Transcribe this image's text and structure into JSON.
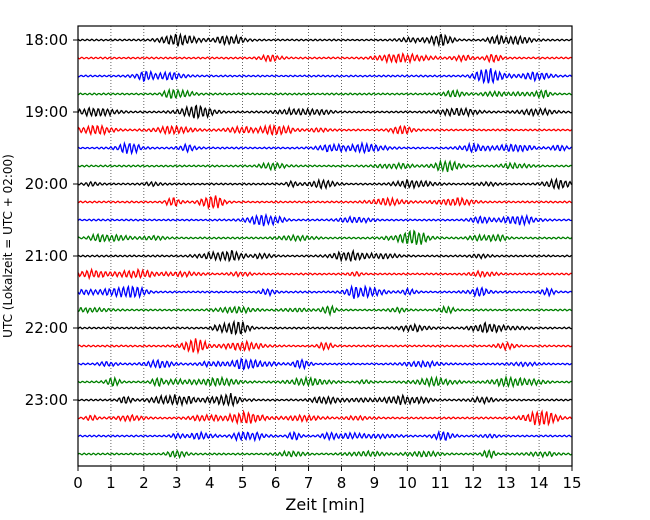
{
  "chart_data": {
    "type": "line",
    "title": "",
    "xlabel": "Zeit  [min]",
    "ylabel": "UTC (Lokalzeit = UTC + 02:00)",
    "xlim": [
      0,
      15
    ],
    "x_ticks": [
      0,
      1,
      2,
      3,
      4,
      5,
      6,
      7,
      8,
      9,
      10,
      11,
      12,
      13,
      14,
      15
    ],
    "x_tick_labels": [
      "0",
      "1",
      "2",
      "3",
      "4",
      "5",
      "6",
      "7",
      "8",
      "9",
      "10",
      "11",
      "12",
      "13",
      "14",
      "15"
    ],
    "y_tick_labels": [
      "18:00",
      "19:00",
      "20:00",
      "21:00",
      "22:00",
      "23:00"
    ],
    "trace_interval_min": 15,
    "start_time": "18:00",
    "trace_count": 24,
    "trace_colors": [
      "#000000",
      "#ff0000",
      "#0000ff",
      "#008000"
    ],
    "vertical_grid": "dotted, every minute",
    "legend": "none"
  }
}
